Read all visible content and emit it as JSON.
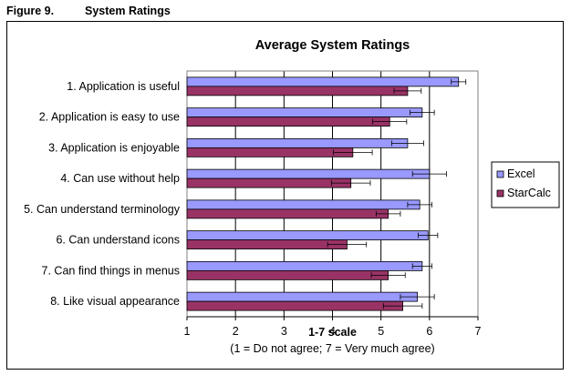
{
  "figure": {
    "number": "Figure 9.",
    "title": "System Ratings"
  },
  "chart_data": {
    "type": "bar",
    "orientation": "horizontal",
    "title": "Average System Ratings",
    "xlabel": "1-7 scale",
    "xlabel_note": "(1 = Do not agree; 7 = Very much agree)",
    "ylabel": "",
    "xlim": [
      1,
      7
    ],
    "xticks": [
      "1",
      "2",
      "3",
      "4",
      "5",
      "6",
      "7"
    ],
    "grid": "vertical",
    "legend_position": "right",
    "categories": [
      "1. Application is useful",
      "2. Application is easy to use",
      "3. Application is enjoyable",
      "4. Can use without help",
      "5. Can understand terminology",
      "6. Can understand icons",
      "7. Can find things in menus",
      "8. Like visual appearance"
    ],
    "series": [
      {
        "name": "Excel",
        "color": "#9999ff",
        "values": [
          6.6,
          5.85,
          5.55,
          6.0,
          5.8,
          5.97,
          5.85,
          5.75
        ],
        "error": [
          0.15,
          0.25,
          0.33,
          0.35,
          0.25,
          0.2,
          0.2,
          0.35
        ]
      },
      {
        "name": "StarCalc",
        "color": "#993366",
        "values": [
          5.55,
          5.18,
          4.42,
          4.38,
          5.15,
          4.3,
          5.15,
          5.45
        ],
        "error": [
          0.28,
          0.35,
          0.4,
          0.4,
          0.25,
          0.4,
          0.35,
          0.4
        ]
      }
    ]
  }
}
